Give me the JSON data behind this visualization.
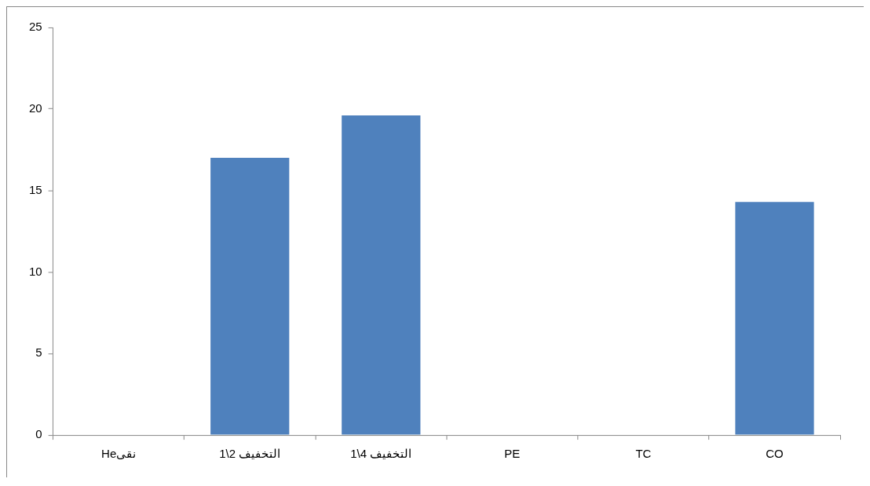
{
  "chart_data": {
    "type": "bar",
    "categories": [
      "Heنقی",
      "التخفيف 2\\1",
      "التخفيف 4\\1",
      "PE",
      "TC",
      "CO"
    ],
    "values": [
      0,
      17,
      19.6,
      0,
      0,
      14.3
    ],
    "color": "#4f81bd",
    "ylim": [
      0,
      25
    ],
    "yticks": [
      0,
      5,
      10,
      15,
      20,
      25
    ],
    "grid": false,
    "legend": false
  }
}
